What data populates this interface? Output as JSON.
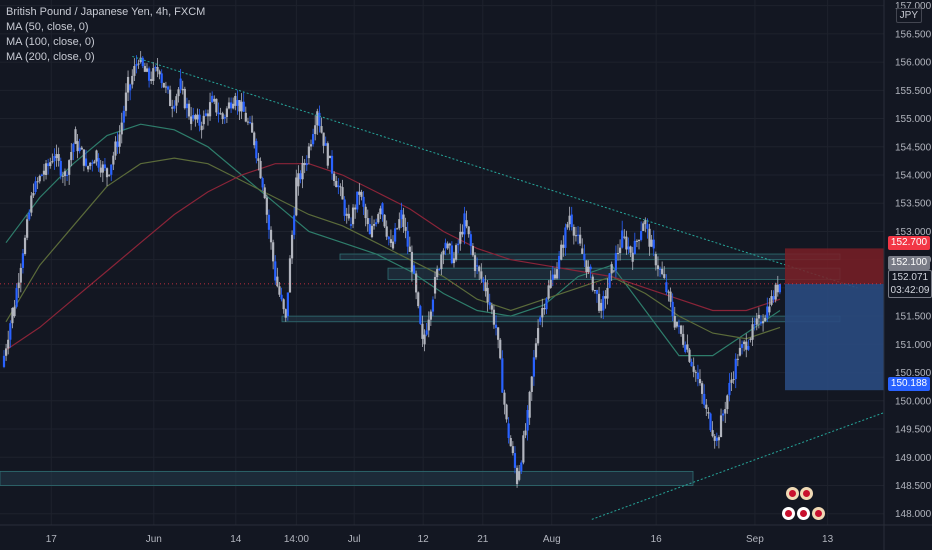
{
  "header": {
    "title": "British Pound / Japanese Yen, 4h, FXCM",
    "indicators": [
      "MA (50, close, 0)",
      "MA (100, close, 0)",
      "MA (200, close, 0)"
    ]
  },
  "currency": "JPY",
  "price_tags": {
    "stop": "152.700",
    "zone": "152.100",
    "last": "152.071",
    "countdown": "03:42:09",
    "target": "150.188"
  },
  "colors": {
    "background": "#131722",
    "grid": "#1e222d",
    "candle": "#b2b5be",
    "candle_alt": "#2962ff",
    "ma50": "#2e7d6b",
    "ma100": "#5b6b3a",
    "ma200": "#8a2438",
    "trendline": "#26a69a",
    "zone_fill": "#243a4a",
    "stop_fill": "#7a1f26",
    "target_fill": "#2a4a80",
    "tag_red": "#f23645",
    "tag_blue": "#2962ff"
  },
  "chart_data": {
    "type": "candlestick",
    "title": "British Pound / Japanese Yen, 4h, FXCM",
    "y_axis_ticks": [
      "157.000",
      "156.500",
      "156.000",
      "155.500",
      "155.000",
      "154.500",
      "154.000",
      "153.500",
      "153.000",
      "152.500",
      "152.000",
      "151.500",
      "151.000",
      "150.500",
      "150.000",
      "149.500",
      "149.000",
      "148.500",
      "148.000"
    ],
    "x_axis_ticks": [
      "17",
      "Jun",
      "14",
      "14:00",
      "Jul",
      "12",
      "21",
      "Aug",
      "16",
      "Sep",
      "13"
    ],
    "ylim": [
      147.8,
      157.1
    ],
    "grid": true,
    "price_path": [
      [
        150.6,
        151.6
      ],
      [
        151.5,
        152.7
      ],
      [
        152.6,
        153.8
      ],
      [
        153.7,
        154.1
      ],
      [
        154.0,
        154.4
      ],
      [
        154.3,
        154.0
      ],
      [
        154.0,
        154.7
      ],
      [
        154.6,
        154.2
      ],
      [
        154.1,
        154.4
      ],
      [
        154.3,
        154.0
      ],
      [
        154.0,
        154.6
      ],
      [
        154.5,
        155.6
      ],
      [
        155.5,
        156.1
      ],
      [
        156.0,
        155.7
      ],
      [
        155.7,
        155.9
      ],
      [
        155.8,
        155.3
      ],
      [
        155.2,
        155.6
      ],
      [
        155.5,
        155.0
      ],
      [
        155.0,
        154.9
      ],
      [
        154.9,
        155.3
      ],
      [
        155.3,
        155.0
      ],
      [
        155.0,
        155.4
      ],
      [
        155.4,
        155.1
      ],
      [
        155.1,
        154.6
      ],
      [
        154.6,
        153.7
      ],
      [
        153.6,
        152.2
      ],
      [
        152.2,
        151.4
      ],
      [
        151.5,
        153.9
      ],
      [
        153.8,
        154.3
      ],
      [
        154.3,
        155.2
      ],
      [
        155.1,
        154.3
      ],
      [
        154.3,
        153.8
      ],
      [
        153.8,
        153.1
      ],
      [
        153.1,
        153.7
      ],
      [
        153.7,
        152.9
      ],
      [
        152.9,
        153.5
      ],
      [
        153.5,
        152.7
      ],
      [
        152.7,
        153.3
      ],
      [
        153.3,
        152.4
      ],
      [
        152.4,
        151.0
      ],
      [
        151.0,
        151.9
      ],
      [
        151.9,
        152.8
      ],
      [
        152.8,
        152.5
      ],
      [
        152.5,
        153.2
      ],
      [
        153.2,
        152.4
      ],
      [
        152.4,
        152.0
      ],
      [
        152.0,
        151.3
      ],
      [
        151.3,
        149.6
      ],
      [
        149.6,
        148.6
      ],
      [
        148.6,
        149.7
      ],
      [
        149.7,
        151.4
      ],
      [
        151.4,
        152.0
      ],
      [
        152.0,
        152.5
      ],
      [
        152.5,
        153.3
      ],
      [
        153.3,
        152.7
      ],
      [
        152.7,
        152.2
      ],
      [
        152.2,
        151.6
      ],
      [
        151.6,
        152.3
      ],
      [
        152.3,
        152.9
      ],
      [
        152.9,
        152.6
      ],
      [
        152.6,
        153.2
      ],
      [
        153.2,
        152.6
      ],
      [
        152.6,
        152.1
      ],
      [
        152.1,
        151.4
      ],
      [
        151.4,
        151.0
      ],
      [
        151.0,
        150.5
      ],
      [
        150.5,
        149.8
      ],
      [
        149.8,
        149.3
      ],
      [
        149.3,
        150.1
      ],
      [
        150.1,
        150.8
      ],
      [
        150.8,
        151.1
      ],
      [
        151.1,
        151.4
      ],
      [
        151.4,
        151.7
      ],
      [
        151.7,
        152.1
      ]
    ],
    "moving_averages": [
      {
        "name": "MA (50, close, 0)",
        "values": [
          152.8,
          153.6,
          154.2,
          154.7,
          154.9,
          154.8,
          154.5,
          154.0,
          153.5,
          153.0,
          152.8,
          152.6,
          152.3,
          151.9,
          151.6,
          151.5,
          151.7,
          152.2,
          152.4,
          151.6,
          150.8,
          150.8,
          151.2,
          151.6
        ]
      },
      {
        "name": "MA (100, close, 0)",
        "values": [
          151.4,
          152.4,
          153.1,
          153.8,
          154.2,
          154.3,
          154.2,
          153.9,
          153.6,
          153.3,
          153.1,
          152.8,
          152.5,
          152.2,
          151.8,
          151.6,
          151.8,
          152.0,
          152.2,
          151.9,
          151.5,
          151.2,
          151.1,
          151.3
        ]
      },
      {
        "name": "MA (200, close, 0)",
        "values": [
          150.9,
          151.3,
          151.8,
          152.3,
          152.8,
          153.3,
          153.7,
          154.0,
          154.2,
          154.2,
          154.0,
          153.7,
          153.4,
          153.0,
          152.7,
          152.5,
          152.4,
          152.3,
          152.2,
          152.0,
          151.8,
          151.6,
          151.6,
          151.8
        ]
      }
    ],
    "trendlines": [
      {
        "from": [
          0.142,
          156.1
        ],
        "to": [
          0.92,
          152.0
        ]
      },
      {
        "from": [
          0.635,
          147.9
        ],
        "to": [
          0.95,
          149.8
        ]
      }
    ],
    "zones": [
      {
        "low": 152.5,
        "high": 152.6
      },
      {
        "low": 152.15,
        "high": 152.35
      },
      {
        "low": 151.4,
        "high": 151.5
      },
      {
        "low": 148.5,
        "high": 148.75
      }
    ],
    "position": {
      "entry": 152.071,
      "stop": 152.7,
      "target": 150.188
    }
  }
}
